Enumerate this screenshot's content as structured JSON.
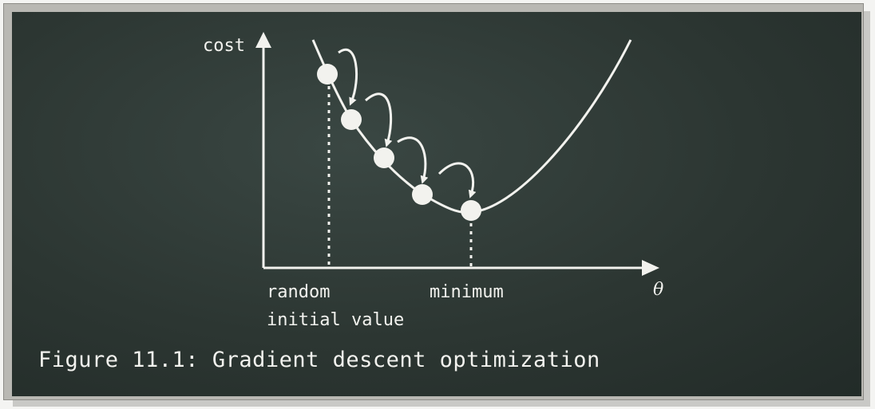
{
  "diagram": {
    "y_axis_label": "cost",
    "x_axis_label": "θ",
    "start_label_line1": "random",
    "start_label_line2": "initial value",
    "min_label": "minimum",
    "caption": "Figure 11.1: Gradient descent optimization",
    "chalk_color": "#f2f2ee",
    "board_color": "#2c3632",
    "frame_color": "#b9b8b3"
  }
}
